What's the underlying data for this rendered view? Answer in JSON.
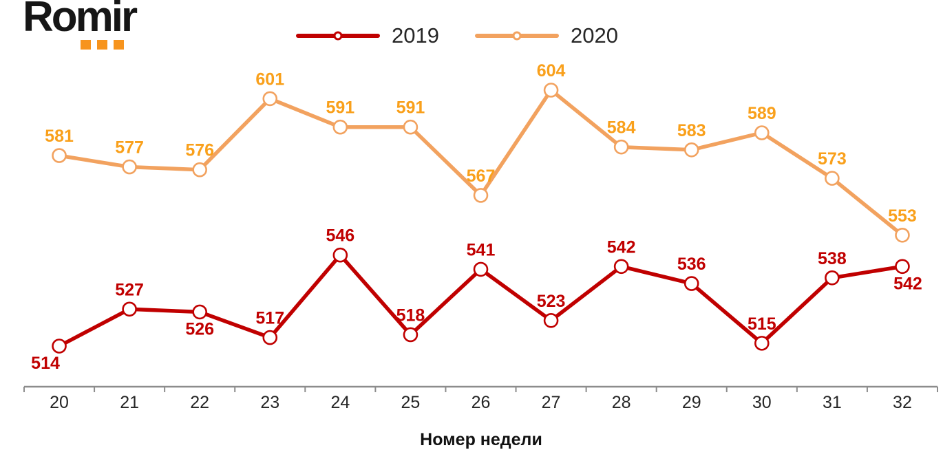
{
  "logo": {
    "text": "Romir",
    "dot_color": "#F7941D"
  },
  "chart_data": {
    "type": "line",
    "x": [
      "20",
      "21",
      "22",
      "23",
      "24",
      "25",
      "26",
      "27",
      "28",
      "29",
      "30",
      "31",
      "32"
    ],
    "xlabel": "Номер недели",
    "series": [
      {
        "name": "2019",
        "color": "#C00000",
        "label_color": "#C00000",
        "values": [
          514,
          527,
          526,
          517,
          546,
          518,
          541,
          523,
          542,
          536,
          515,
          538,
          542
        ],
        "label_positions": [
          "below-left",
          "above",
          "below",
          "above",
          "above",
          "above",
          "above",
          "above",
          "above",
          "above",
          "above",
          "above",
          "below-right"
        ]
      },
      {
        "name": "2020",
        "color": "#F2A25F",
        "label_color": "#F9A01B",
        "values": [
          581,
          577,
          576,
          601,
          591,
          591,
          567,
          604,
          584,
          583,
          589,
          573,
          553
        ],
        "label_positions": [
          "above",
          "above",
          "above",
          "above",
          "above",
          "above",
          "above",
          "above",
          "above",
          "above",
          "above",
          "above",
          "above"
        ]
      }
    ],
    "ylim": [
      505,
      615
    ],
    "grid": false,
    "legend_position": "top-center",
    "axis_color": "#8C8C8C",
    "tick_label_color": "#262626"
  }
}
